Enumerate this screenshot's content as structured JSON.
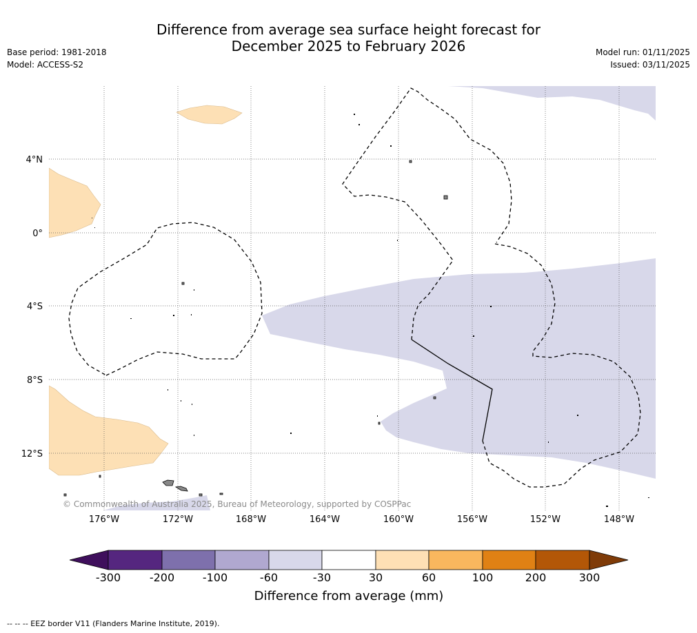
{
  "title": {
    "line1": "Difference from average sea surface height forecast for",
    "line2": "December 2025 to February 2026"
  },
  "meta_left": {
    "base_period": "Base period: 1981-2018",
    "model": "Model: ACCESS-S2"
  },
  "meta_right": {
    "model_run": "Model run: 01/11/2025",
    "issued": "Issued: 03/11/2025"
  },
  "map": {
    "lon_ticks": [
      "176°W",
      "172°W",
      "168°W",
      "164°W",
      "160°W",
      "156°W",
      "152°W",
      "148°W"
    ],
    "lat_ticks": [
      "4°N",
      "0°",
      "4°S",
      "8°S",
      "12°S"
    ],
    "copyright": "© Commonwealth of Australia 2025, Bureau of Meteorology, supported by COSPPac"
  },
  "colorbar": {
    "title": "Difference from average (mm)",
    "labels": [
      "-300",
      "-200",
      "-100",
      "-60",
      "-30",
      "30",
      "60",
      "100",
      "200",
      "300"
    ],
    "colors": [
      "#3f0f5c",
      "#55267f",
      "#7e70ac",
      "#b0a8d0",
      "#d8d8ea",
      "#ffffff",
      "#fee0b5",
      "#f9b75e",
      "#e08114",
      "#b35707",
      "#7f3b08"
    ]
  },
  "footer": "--  --  -- EEZ border V11 (Flanders Marine Institute, 2019).",
  "colors": {
    "positive_anomaly_fill": "#fde0b5",
    "negative_anomaly_fill": "#d8d8ea",
    "island_fill": "#888888"
  }
}
